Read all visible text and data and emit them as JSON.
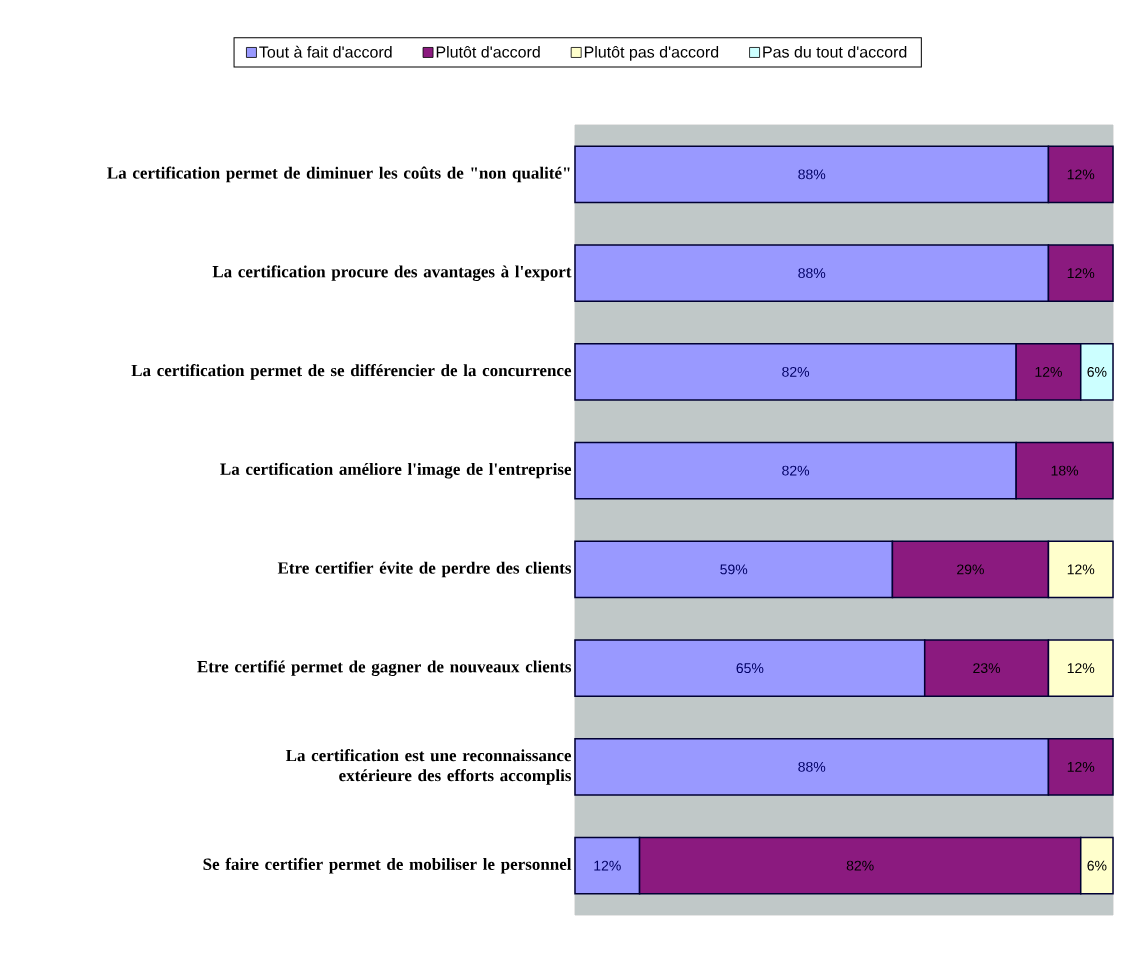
{
  "chart_data": {
    "type": "bar",
    "orientation": "horizontal",
    "stacked": true,
    "legend": "top",
    "tick_labels": "y",
    "categories": [
      "La certification permet de diminuer les coûts de \"non qualité\"",
      "La certification procure des avantages à l'export",
      "La certification permet de se différencier de la concurrence",
      "La certification améliore l'image de l'entreprise",
      "Etre certifier évite de perdre des clients",
      "Etre certifié permet de gagner de nouveaux clients",
      "La certification est une reconnaissance extérieure des efforts accomplis",
      "Se faire certifier  permet de mobiliser le personnel"
    ],
    "xlim": [
      0,
      100
    ],
    "series": [
      {
        "name": "Tout à fait d'accord",
        "color": "#9999ff",
        "values": [
          88,
          88,
          82,
          82,
          59,
          65,
          88,
          12
        ],
        "value_labels": [
          "88%",
          "88%",
          "82%",
          "82%",
          "59%",
          "65%",
          "88%",
          "12%"
        ]
      },
      {
        "name": "Plutôt d'accord",
        "color": "#8b1a7f",
        "values": [
          12,
          12,
          12,
          18,
          29,
          23,
          12,
          82
        ],
        "value_labels": [
          "12%",
          "12%",
          "12%",
          "18%",
          "29%",
          "23%",
          "12%",
          "82%"
        ]
      },
      {
        "name": "Plutôt pas d'accord",
        "color": "#ffffcc",
        "values": [
          null,
          null,
          null,
          null,
          12,
          12,
          null,
          6
        ],
        "value_labels": [
          null,
          null,
          null,
          null,
          "12%",
          "12%",
          null,
          "6%"
        ]
      },
      {
        "name": "Pas du tout d'accord",
        "color": "#ccffff",
        "values": [
          null,
          null,
          6,
          null,
          null,
          null,
          null,
          null
        ],
        "value_labels": [
          null,
          null,
          "6%",
          null,
          null,
          null,
          null,
          null
        ]
      }
    ]
  }
}
